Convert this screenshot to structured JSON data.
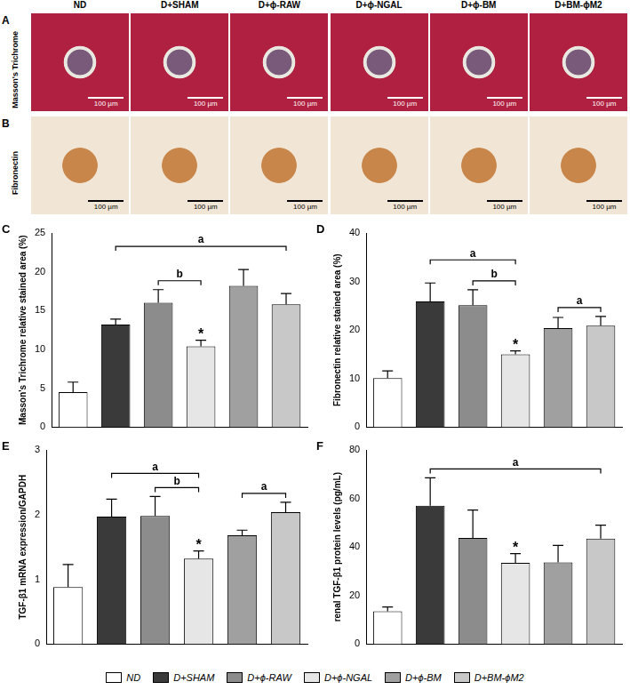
{
  "image_panels": {
    "columns": [
      "ND",
      "D+SHAM",
      "D+ϕ-RAW",
      "D+ϕ-NGAL",
      "D+ϕ-BM",
      "D+BM-ϕM2"
    ],
    "rows": [
      {
        "panel": "A",
        "label": "Masson's Trichrome",
        "scale_bar": "100 µm"
      },
      {
        "panel": "B",
        "label": "Fibronectin",
        "scale_bar": "100 µm"
      }
    ]
  },
  "chart_data": [
    {
      "panel": "C",
      "type": "bar",
      "y_label": "Masson's Trichrome relative stained area (%)",
      "categories": [
        "ND",
        "D+SHAM",
        "D+ϕ-RAW",
        "D+ϕ-NGAL",
        "D+ϕ-BM",
        "D+BM-ϕM2"
      ],
      "values": [
        4.5,
        13.2,
        16.0,
        10.4,
        18.2,
        15.8
      ],
      "errors": [
        1.3,
        0.7,
        1.7,
        0.8,
        2.1,
        1.4
      ],
      "colors": [
        "#ffffff",
        "#3a3a3a",
        "#8c8c8c",
        "#e6e6e6",
        "#a0a0a0",
        "#c8c8c8"
      ],
      "ylim": [
        0,
        25
      ],
      "yticks": [
        0,
        5,
        10,
        15,
        20,
        25
      ],
      "grid": false,
      "tick_labels": "y",
      "legend": "bottom",
      "annotations": [
        {
          "label": "b",
          "from": "D+ϕ-RAW",
          "to": "D+ϕ-NGAL"
        },
        {
          "label": "a",
          "from": "D+SHAM",
          "to": "D+BM-ϕM2"
        },
        {
          "label": "*",
          "at": "D+ϕ-NGAL"
        }
      ]
    },
    {
      "panel": "D",
      "type": "bar",
      "y_label": "Fibronectin relative stained area (%)",
      "categories": [
        "ND",
        "D+SHAM",
        "D+ϕ-RAW",
        "D+ϕ-NGAL",
        "D+ϕ-BM",
        "D+BM-ϕM2"
      ],
      "values": [
        10.1,
        25.9,
        25.1,
        15.0,
        20.4,
        20.9
      ],
      "errors": [
        1.5,
        3.8,
        3.2,
        0.7,
        2.2,
        1.9
      ],
      "colors": [
        "#ffffff",
        "#3a3a3a",
        "#8c8c8c",
        "#e6e6e6",
        "#a0a0a0",
        "#c8c8c8"
      ],
      "ylim": [
        0,
        40
      ],
      "yticks": [
        0,
        10,
        20,
        30,
        40
      ],
      "grid": false,
      "tick_labels": "y",
      "legend": "bottom",
      "annotations": [
        {
          "label": "b",
          "from": "D+ϕ-RAW",
          "to": "D+ϕ-NGAL"
        },
        {
          "label": "a",
          "from": "D+SHAM",
          "to": "D+ϕ-NGAL"
        },
        {
          "label": "a",
          "from": "D+ϕ-BM",
          "to": "D+BM-ϕM2"
        },
        {
          "label": "*",
          "at": "D+ϕ-NGAL"
        }
      ]
    },
    {
      "panel": "E",
      "type": "bar",
      "y_label": "TGF-β1 mRNA expression/GAPDH",
      "categories": [
        "ND",
        "D+SHAM",
        "D+ϕ-RAW",
        "D+ϕ-NGAL",
        "D+ϕ-BM",
        "D+BM-ϕM2"
      ],
      "values": [
        0.88,
        1.97,
        1.98,
        1.32,
        1.68,
        2.04
      ],
      "errors": [
        0.35,
        0.27,
        0.3,
        0.12,
        0.08,
        0.15
      ],
      "colors": [
        "#ffffff",
        "#3a3a3a",
        "#8c8c8c",
        "#e6e6e6",
        "#a0a0a0",
        "#c8c8c8"
      ],
      "ylim": [
        0,
        3
      ],
      "yticks": [
        0,
        1,
        2,
        3
      ],
      "grid": false,
      "tick_labels": "y",
      "legend": "bottom",
      "annotations": [
        {
          "label": "b",
          "from": "D+ϕ-RAW",
          "to": "D+ϕ-NGAL"
        },
        {
          "label": "a",
          "from": "D+SHAM",
          "to": "D+ϕ-NGAL"
        },
        {
          "label": "a",
          "from": "D+ϕ-BM",
          "to": "D+BM-ϕM2"
        },
        {
          "label": "*",
          "at": "D+ϕ-NGAL"
        }
      ]
    },
    {
      "panel": "F",
      "type": "bar",
      "y_label": "renal TGF-β1 protein levels (pg/mL)",
      "categories": [
        "ND",
        "D+SHAM",
        "D+ϕ-RAW",
        "D+ϕ-NGAL",
        "D+ϕ-BM",
        "D+BM-ϕM2"
      ],
      "values": [
        13.5,
        57.0,
        43.7,
        33.5,
        33.7,
        43.5
      ],
      "errors": [
        1.8,
        11.5,
        11.5,
        3.8,
        7.0,
        5.5
      ],
      "colors": [
        "#ffffff",
        "#3a3a3a",
        "#8c8c8c",
        "#e6e6e6",
        "#a0a0a0",
        "#c8c8c8"
      ],
      "ylim": [
        0,
        80
      ],
      "yticks": [
        0,
        20,
        40,
        60,
        80
      ],
      "grid": false,
      "tick_labels": "y",
      "legend": "bottom",
      "annotations": [
        {
          "label": "a",
          "from": "D+SHAM",
          "to": "D+BM-ϕM2"
        },
        {
          "label": "*",
          "at": "D+ϕ-NGAL"
        }
      ]
    }
  ]
}
